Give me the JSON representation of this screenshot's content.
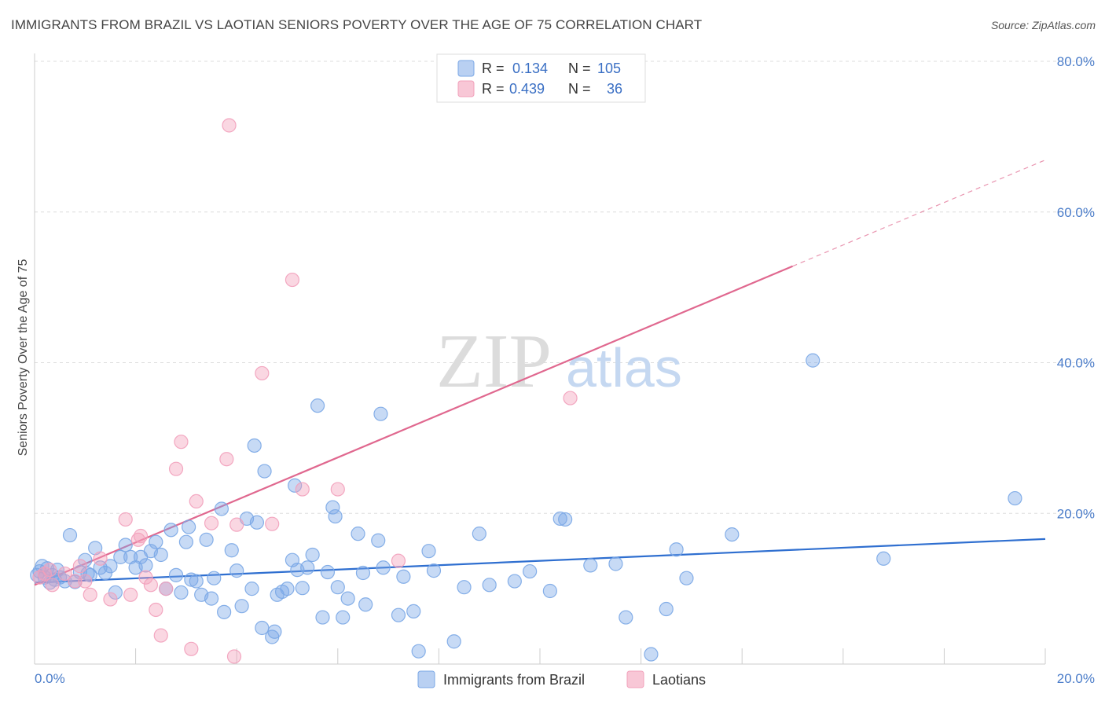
{
  "title": "IMMIGRANTS FROM BRAZIL VS LAOTIAN SENIORS POVERTY OVER THE AGE OF 75 CORRELATION CHART",
  "source": "Source: ZipAtlas.com",
  "watermark": {
    "zip": "ZIP",
    "atlas": "atlas"
  },
  "legend": {
    "rows": [
      {
        "r_label": "R =",
        "r_value": "0.134",
        "n_label": "N =",
        "n_value": "105",
        "color": "#a7c4ef"
      },
      {
        "r_label": "R =",
        "r_value": "0.439",
        "n_label": "N =",
        "n_value": "36",
        "color": "#f6b9cc"
      }
    ]
  },
  "chart_data": {
    "type": "scatter",
    "title": "IMMIGRANTS FROM BRAZIL VS LAOTIAN SENIORS POVERTY OVER THE AGE OF 75 CORRELATION CHART",
    "xlabel": "",
    "ylabel": "Seniors Poverty Over the Age of 75",
    "xlim": [
      0,
      20
    ],
    "ylim": [
      0,
      80
    ],
    "x_ticks": [
      "0.0%",
      "20.0%"
    ],
    "y_ticks": [
      "20.0%",
      "40.0%",
      "60.0%",
      "80.0%"
    ],
    "y_tick_values": [
      20,
      40,
      60,
      80
    ],
    "grid": true,
    "legend_position": "bottom",
    "series": [
      {
        "name": "Immigrants from Brazil",
        "color": "#7aa7e6",
        "line_color": "#2f6fd0",
        "trend": {
          "x": [
            0,
            20
          ],
          "y": [
            10.8,
            16.6
          ]
        },
        "points": [
          [
            0.1,
            12.3
          ],
          [
            0.15,
            13.0
          ],
          [
            0.2,
            11.5
          ],
          [
            0.25,
            12.7
          ],
          [
            0.3,
            10.8
          ],
          [
            0.35,
            11.8
          ],
          [
            0.4,
            11.2
          ],
          [
            0.5,
            11.5
          ],
          [
            0.6,
            11.0
          ],
          [
            0.7,
            17.1
          ],
          [
            0.8,
            10.9
          ],
          [
            0.9,
            12.2
          ],
          [
            1.0,
            13.8
          ],
          [
            1.1,
            11.8
          ],
          [
            1.2,
            15.4
          ],
          [
            1.3,
            12.8
          ],
          [
            1.4,
            12.1
          ],
          [
            1.5,
            13.0
          ],
          [
            1.6,
            9.5
          ],
          [
            1.7,
            14.2
          ],
          [
            1.8,
            15.8
          ],
          [
            1.9,
            14.2
          ],
          [
            2.0,
            12.8
          ],
          [
            2.1,
            14.2
          ],
          [
            2.2,
            13.1
          ],
          [
            2.4,
            16.2
          ],
          [
            2.5,
            14.5
          ],
          [
            2.6,
            10.0
          ],
          [
            2.7,
            17.8
          ],
          [
            2.8,
            11.8
          ],
          [
            2.9,
            9.5
          ],
          [
            3.0,
            16.2
          ],
          [
            3.05,
            18.2
          ],
          [
            3.1,
            11.2
          ],
          [
            3.3,
            9.2
          ],
          [
            3.4,
            16.5
          ],
          [
            3.5,
            8.7
          ],
          [
            3.55,
            11.4
          ],
          [
            3.7,
            20.6
          ],
          [
            3.75,
            6.9
          ],
          [
            3.9,
            15.1
          ],
          [
            4.0,
            12.4
          ],
          [
            4.1,
            7.7
          ],
          [
            4.2,
            19.3
          ],
          [
            4.3,
            10.0
          ],
          [
            4.35,
            29.0
          ],
          [
            4.4,
            18.8
          ],
          [
            4.5,
            4.8
          ],
          [
            4.55,
            25.6
          ],
          [
            4.7,
            3.6
          ],
          [
            4.75,
            4.3
          ],
          [
            4.8,
            9.2
          ],
          [
            4.9,
            9.6
          ],
          [
            5.0,
            10.0
          ],
          [
            5.1,
            13.8
          ],
          [
            5.15,
            23.7
          ],
          [
            5.2,
            12.5
          ],
          [
            5.4,
            12.8
          ],
          [
            5.5,
            14.5
          ],
          [
            5.6,
            34.3
          ],
          [
            5.7,
            6.2
          ],
          [
            5.8,
            12.2
          ],
          [
            5.9,
            20.8
          ],
          [
            5.95,
            19.6
          ],
          [
            6.0,
            10.2
          ],
          [
            6.2,
            8.7
          ],
          [
            6.1,
            6.2
          ],
          [
            6.4,
            17.3
          ],
          [
            6.5,
            12.1
          ],
          [
            6.55,
            7.9
          ],
          [
            6.8,
            16.4
          ],
          [
            6.85,
            33.2
          ],
          [
            6.9,
            12.8
          ],
          [
            7.2,
            6.5
          ],
          [
            7.3,
            11.6
          ],
          [
            7.5,
            7.0
          ],
          [
            7.6,
            1.7
          ],
          [
            7.8,
            15.0
          ],
          [
            7.9,
            12.4
          ],
          [
            8.3,
            3.0
          ],
          [
            8.5,
            10.2
          ],
          [
            8.8,
            17.3
          ],
          [
            9.0,
            10.5
          ],
          [
            9.5,
            11.0
          ],
          [
            10.2,
            9.7
          ],
          [
            10.4,
            19.3
          ],
          [
            10.5,
            19.2
          ],
          [
            11.0,
            13.1
          ],
          [
            11.5,
            13.3
          ],
          [
            11.7,
            6.2
          ],
          [
            12.2,
            1.3
          ],
          [
            12.5,
            7.3
          ],
          [
            12.7,
            15.2
          ],
          [
            12.9,
            11.4
          ],
          [
            13.8,
            17.2
          ],
          [
            15.4,
            40.3
          ],
          [
            16.8,
            14.0
          ],
          [
            19.4,
            22.0
          ],
          [
            0.05,
            11.8
          ],
          [
            0.45,
            12.5
          ],
          [
            1.05,
            12.0
          ],
          [
            2.3,
            15.0
          ],
          [
            3.2,
            11.0
          ],
          [
            5.3,
            10.1
          ],
          [
            9.8,
            12.3
          ]
        ]
      },
      {
        "name": "Laotians",
        "color": "#f2a0bb",
        "line_color": "#e0688f",
        "trend": {
          "x": [
            0,
            15
          ],
          "y": [
            10.5,
            52.8
          ]
        },
        "trend_dashed": {
          "x": [
            15,
            20
          ],
          "y": [
            52.8,
            66.9
          ]
        },
        "points": [
          [
            0.1,
            11.5
          ],
          [
            0.3,
            12.5
          ],
          [
            0.35,
            10.5
          ],
          [
            0.6,
            12.0
          ],
          [
            0.8,
            11.0
          ],
          [
            0.9,
            13.0
          ],
          [
            1.1,
            9.2
          ],
          [
            1.3,
            14.0
          ],
          [
            1.5,
            8.6
          ],
          [
            1.8,
            19.2
          ],
          [
            1.9,
            9.2
          ],
          [
            2.05,
            16.5
          ],
          [
            2.1,
            17.0
          ],
          [
            2.2,
            11.5
          ],
          [
            2.3,
            10.5
          ],
          [
            2.4,
            7.2
          ],
          [
            2.5,
            3.8
          ],
          [
            2.8,
            25.9
          ],
          [
            2.9,
            29.5
          ],
          [
            3.1,
            2.0
          ],
          [
            3.2,
            21.6
          ],
          [
            3.5,
            18.7
          ],
          [
            3.8,
            27.2
          ],
          [
            3.85,
            71.5
          ],
          [
            3.95,
            1.0
          ],
          [
            4.0,
            18.5
          ],
          [
            4.5,
            38.6
          ],
          [
            5.1,
            51.0
          ],
          [
            5.3,
            23.2
          ],
          [
            6.0,
            23.2
          ],
          [
            7.2,
            13.7
          ],
          [
            10.6,
            35.3
          ],
          [
            0.2,
            12.0
          ],
          [
            1.0,
            11.0
          ],
          [
            2.6,
            10.0
          ],
          [
            4.7,
            18.6
          ]
        ]
      }
    ]
  }
}
